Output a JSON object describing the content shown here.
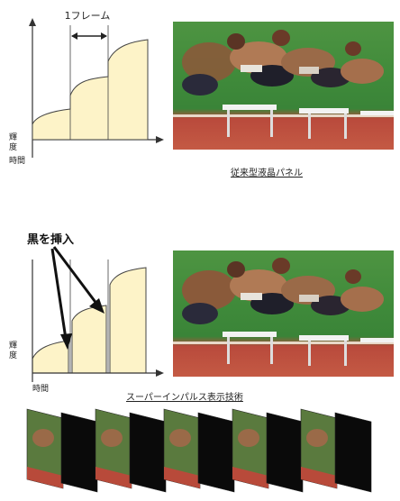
{
  "top_panel": {
    "frame_label": "1フレーム",
    "y_label": "輝度",
    "x_label": "時間",
    "caption": "従来型液晶パネル"
  },
  "bottom_panel": {
    "annotation": "黒を挿入",
    "y_label": "輝度",
    "x_label": "時間",
    "caption": "スーパーインパルス表示技術"
  },
  "colors": {
    "curve_fill": "#fdf3c8",
    "stroke": "#333333",
    "track_green": "#3d8a3c",
    "track_red": "#b84a3a",
    "black_frame": "#0a0a0a"
  },
  "filmstrip": {
    "frames": [
      "image",
      "black",
      "image",
      "black",
      "image",
      "black",
      "image",
      "black",
      "image",
      "black"
    ]
  }
}
